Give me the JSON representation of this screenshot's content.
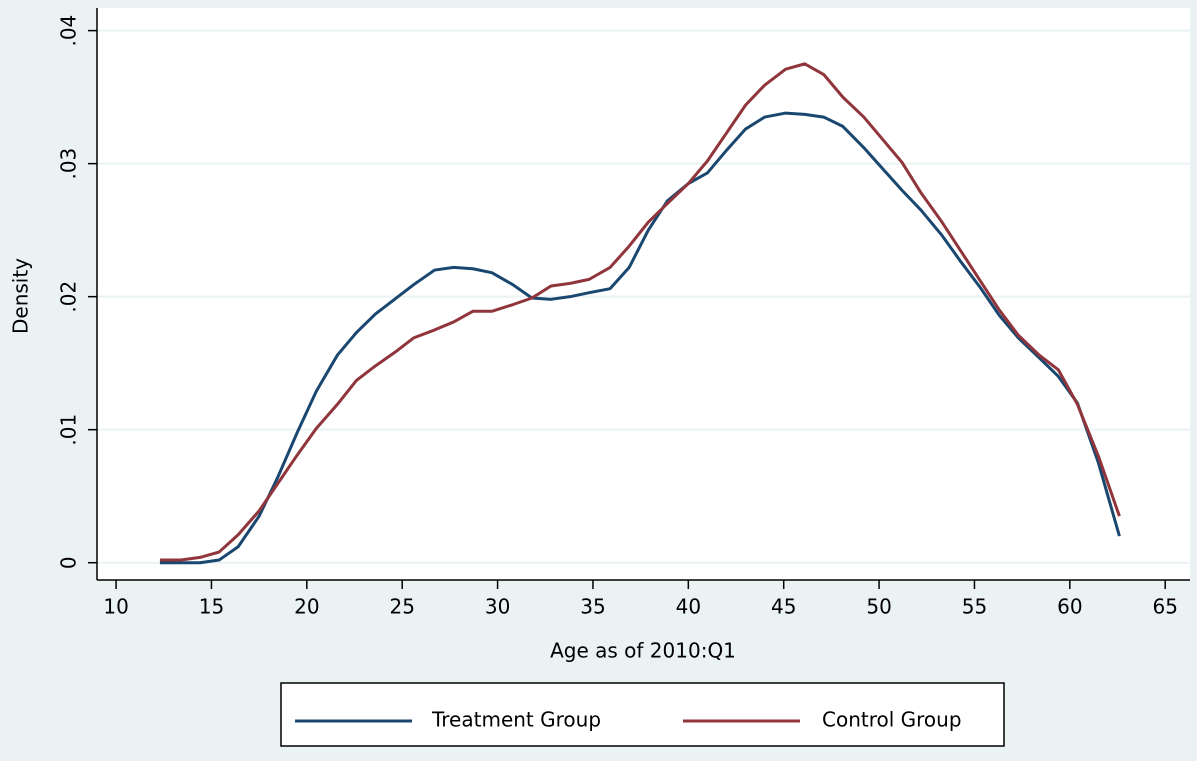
{
  "chart_data": {
    "type": "line",
    "x_label": "Age as of 2010:Q1",
    "y_label": "Density",
    "x": [
      12.3,
      13.4,
      14.4,
      15.4,
      16.4,
      17.5,
      18.5,
      19.5,
      20.5,
      21.6,
      22.6,
      23.6,
      24.6,
      25.6,
      26.7,
      27.7,
      28.7,
      29.7,
      30.8,
      31.8,
      32.8,
      33.8,
      34.8,
      35.9,
      36.9,
      37.9,
      38.9,
      40,
      41,
      42,
      43,
      44,
      45.1,
      46.1,
      47.1,
      48.1,
      49.2,
      50.2,
      51.2,
      52.2,
      53.3,
      54.3,
      55.3,
      56.3,
      57.3,
      58.4,
      59.4,
      60.4,
      61.5,
      62.6
    ],
    "series": [
      {
        "name": "Treatment Group",
        "color": "#1a476f",
        "values": [
          0,
          0,
          0,
          0.0002,
          0.0012,
          0.0035,
          0.0065,
          0.0098,
          0.0129,
          0.0156,
          0.0173,
          0.0187,
          0.0198,
          0.0209,
          0.022,
          0.0222,
          0.0221,
          0.0218,
          0.0209,
          0.0199,
          0.0198,
          0.02,
          0.0203,
          0.0206,
          0.0222,
          0.025,
          0.0272,
          0.0285,
          0.0293,
          0.031,
          0.0326,
          0.0335,
          0.0338,
          0.0337,
          0.0335,
          0.0328,
          0.0312,
          0.0296,
          0.028,
          0.0265,
          0.0246,
          0.0226,
          0.0207,
          0.0186,
          0.0169,
          0.0154,
          0.014,
          0.012,
          0.0075,
          0.002
        ]
      },
      {
        "name": "Control Group",
        "color": "#90353b",
        "values": [
          0.0002,
          0.0002,
          0.0004,
          0.0008,
          0.0021,
          0.0039,
          0.006,
          0.0081,
          0.0101,
          0.0119,
          0.0137,
          0.0148,
          0.0158,
          0.0169,
          0.0175,
          0.0181,
          0.0189,
          0.0189,
          0.0194,
          0.0199,
          0.0208,
          0.021,
          0.0213,
          0.0222,
          0.0238,
          0.0256,
          0.027,
          0.0285,
          0.0302,
          0.0323,
          0.0344,
          0.0359,
          0.0371,
          0.0375,
          0.0367,
          0.035,
          0.0335,
          0.0318,
          0.0301,
          0.0278,
          0.0256,
          0.0234,
          0.0212,
          0.019,
          0.0171,
          0.0156,
          0.0145,
          0.0119,
          0.008,
          0.0035
        ]
      }
    ],
    "xlim": [
      9,
      66.3
    ],
    "xticks": [
      10,
      15,
      20,
      25,
      30,
      35,
      40,
      45,
      50,
      55,
      60,
      65
    ],
    "ylim": [
      -0.0013,
      0.0417
    ],
    "yticks": [
      0,
      {
        "value": 0.01,
        "label": ".01"
      },
      {
        "value": 0.02,
        "label": ".02"
      },
      {
        "value": 0.03,
        "label": ".03"
      },
      {
        "value": 0.04,
        "label": ".04"
      }
    ],
    "grid": true,
    "legend": "bottom"
  }
}
